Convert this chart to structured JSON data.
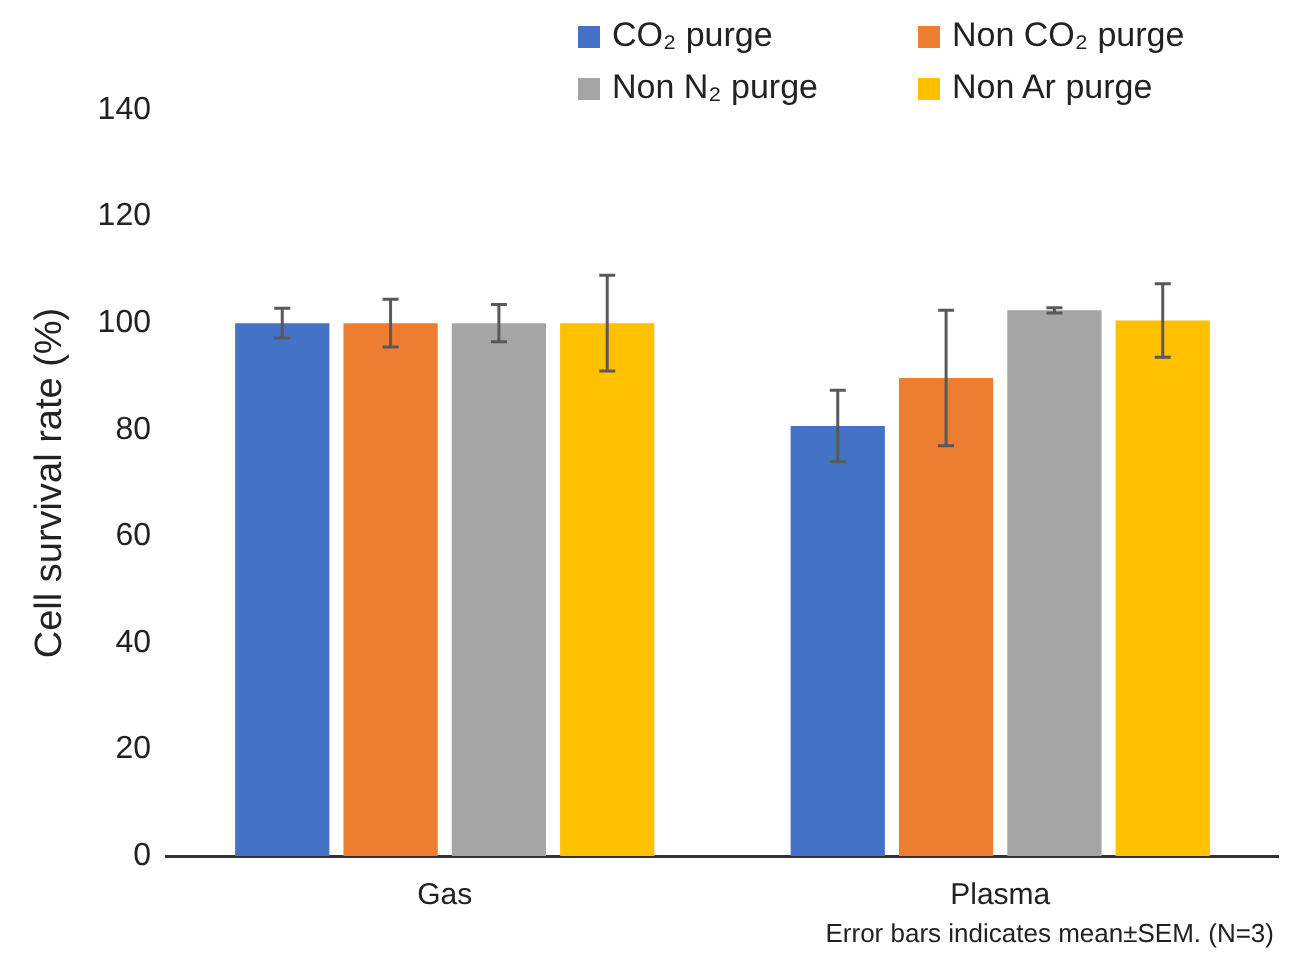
{
  "chart_data": {
    "type": "bar",
    "ylabel": "Cell survival rate (%)",
    "categories": [
      "Gas",
      "Plasma"
    ],
    "series": [
      {
        "name": "CO₂ purge",
        "color": "#4472c4",
        "values": [
          100,
          80.7
        ],
        "errors": [
          2.8,
          6.7
        ]
      },
      {
        "name": "Non CO₂ purge",
        "color": "#ed7d31",
        "values": [
          100,
          89.7
        ],
        "errors": [
          4.5,
          12.7
        ]
      },
      {
        "name": "Non N₂ purge",
        "color": "#a5a5a5",
        "values": [
          100,
          102.4
        ],
        "errors": [
          3.5,
          0.5
        ]
      },
      {
        "name": "Non Ar purge",
        "color": "#ffc000",
        "values": [
          100,
          100.5
        ],
        "errors": [
          9,
          6.9
        ]
      }
    ],
    "ylim": [
      0,
      140
    ],
    "yticks": [
      0,
      20,
      40,
      60,
      80,
      100,
      120,
      140
    ],
    "grid": false,
    "legend": "top right",
    "annotations": [
      "Error bars indicates mean±SEM. (N=3)"
    ]
  }
}
